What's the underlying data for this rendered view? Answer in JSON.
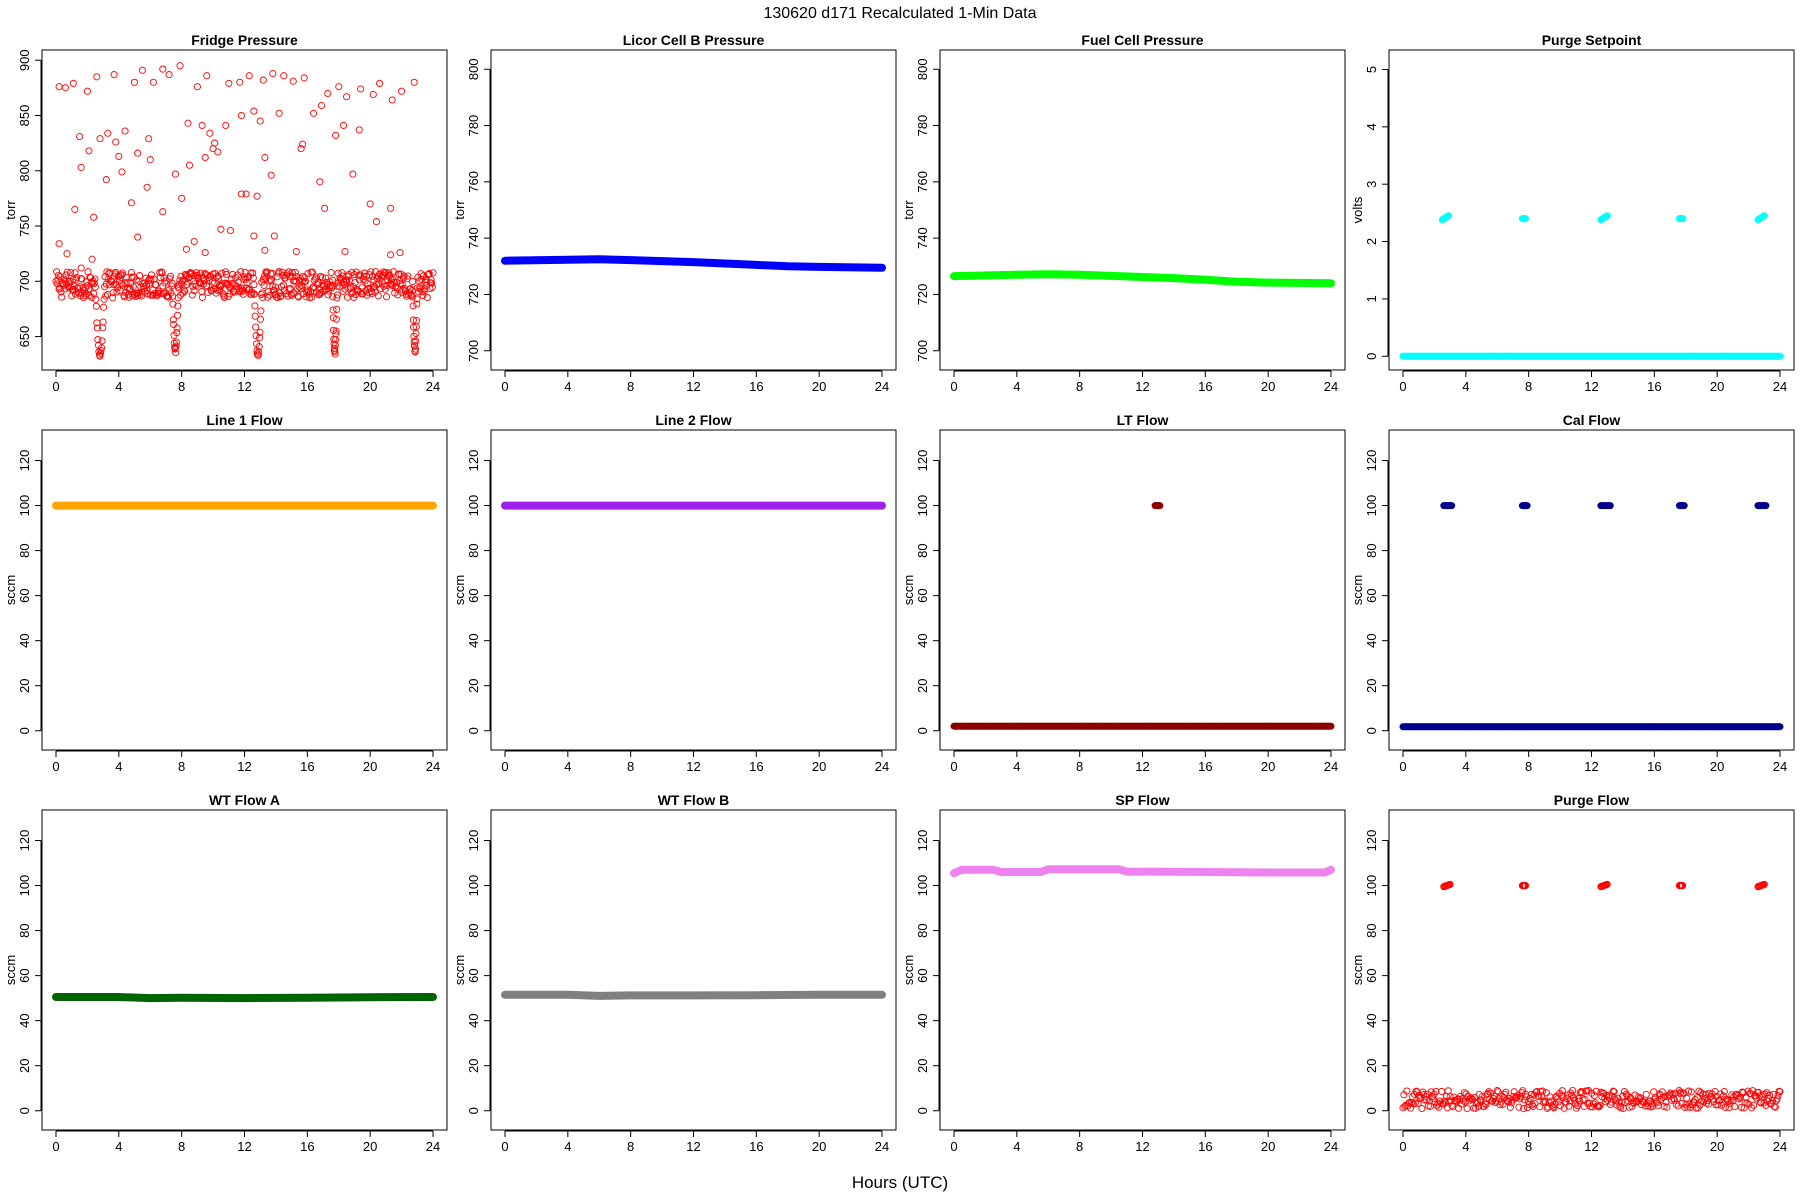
{
  "figure": {
    "title": "130620   d171   Recalculated 1-Min Data",
    "xlabel": "Hours (UTC)"
  },
  "chart_data": [
    {
      "type": "scatter",
      "title": "Fridge Pressure",
      "ylabel": "torr",
      "color": "#ff0000",
      "marker": "open",
      "xlim": [
        0,
        24
      ],
      "xticks": [
        0,
        4,
        8,
        12,
        16,
        20,
        24
      ],
      "ylim": [
        627,
        902
      ],
      "yticks": [
        650,
        700,
        750,
        800,
        850,
        900
      ],
      "baseline": {
        "y": 697,
        "spread": 12,
        "x_start": 0,
        "x_end": 24,
        "step": 0.04
      },
      "dips": [
        {
          "x_start": 2.5,
          "x_end": 3.1,
          "y_min": 633
        },
        {
          "x_start": 7.4,
          "x_end": 7.8,
          "y_min": 637
        },
        {
          "x_start": 12.6,
          "x_end": 13.1,
          "y_min": 634
        },
        {
          "x_start": 17.6,
          "x_end": 17.9,
          "y_min": 636
        },
        {
          "x_start": 22.7,
          "x_end": 23.0,
          "y_min": 638
        }
      ],
      "outliers": [
        [
          0.2,
          876
        ],
        [
          0.6,
          875
        ],
        [
          1.1,
          879
        ],
        [
          2.0,
          872
        ],
        [
          2.6,
          885
        ],
        [
          3.7,
          887
        ],
        [
          5.0,
          880
        ],
        [
          5.5,
          891
        ],
        [
          6.2,
          880
        ],
        [
          6.8,
          892
        ],
        [
          7.2,
          887
        ],
        [
          7.9,
          895
        ],
        [
          9.0,
          876
        ],
        [
          9.6,
          886
        ],
        [
          11.0,
          879
        ],
        [
          11.7,
          880
        ],
        [
          12.3,
          886
        ],
        [
          13.2,
          882
        ],
        [
          13.8,
          888
        ],
        [
          14.5,
          886
        ],
        [
          15.1,
          881
        ],
        [
          15.8,
          884
        ],
        [
          17.3,
          870
        ],
        [
          18.0,
          876
        ],
        [
          18.5,
          867
        ],
        [
          19.4,
          874
        ],
        [
          20.2,
          869
        ],
        [
          20.6,
          879
        ],
        [
          21.4,
          864
        ],
        [
          22.0,
          872
        ],
        [
          22.8,
          880
        ],
        [
          1.5,
          831
        ],
        [
          2.8,
          829
        ],
        [
          3.3,
          834
        ],
        [
          3.8,
          826
        ],
        [
          4.4,
          836
        ],
        [
          4.0,
          813
        ],
        [
          5.2,
          816
        ],
        [
          5.9,
          829
        ],
        [
          6.0,
          810
        ],
        [
          8.4,
          843
        ],
        [
          9.3,
          841
        ],
        [
          9.8,
          834
        ],
        [
          10.1,
          825
        ],
        [
          10.8,
          841
        ],
        [
          11.8,
          850
        ],
        [
          12.6,
          854
        ],
        [
          13.0,
          845
        ],
        [
          14.2,
          852
        ],
        [
          15.7,
          824
        ],
        [
          16.4,
          852
        ],
        [
          16.9,
          859
        ],
        [
          17.8,
          832
        ],
        [
          18.3,
          841
        ],
        [
          19.3,
          837
        ],
        [
          2.1,
          818
        ],
        [
          3.2,
          792
        ],
        [
          9.5,
          812
        ],
        [
          10.0,
          820
        ],
        [
          13.3,
          812
        ],
        [
          1.6,
          803
        ],
        [
          4.2,
          799
        ],
        [
          5.8,
          785
        ],
        [
          7.6,
          797
        ],
        [
          8.5,
          805
        ],
        [
          10.3,
          817
        ],
        [
          11.8,
          779
        ],
        [
          12.8,
          777
        ],
        [
          13.7,
          796
        ],
        [
          15.6,
          820
        ],
        [
          16.8,
          790
        ],
        [
          18.9,
          797
        ],
        [
          1.2,
          765
        ],
        [
          2.4,
          758
        ],
        [
          4.8,
          771
        ],
        [
          6.8,
          763
        ],
        [
          8.0,
          775
        ],
        [
          12.1,
          779
        ],
        [
          17.1,
          766
        ],
        [
          20.0,
          770
        ],
        [
          20.4,
          754
        ],
        [
          21.3,
          766
        ],
        [
          0.2,
          734
        ],
        [
          0.7,
          725
        ],
        [
          1.6,
          712
        ],
        [
          2.3,
          720
        ],
        [
          5.2,
          740
        ],
        [
          8.3,
          729
        ],
        [
          8.8,
          736
        ],
        [
          9.5,
          726
        ],
        [
          10.5,
          747
        ],
        [
          11.1,
          746
        ],
        [
          12.6,
          741
        ],
        [
          13.3,
          728
        ],
        [
          13.9,
          741
        ],
        [
          15.3,
          727
        ],
        [
          18.4,
          727
        ],
        [
          21.3,
          724
        ],
        [
          21.9,
          726
        ]
      ]
    },
    {
      "type": "line",
      "title": "Licor Cell B Pressure",
      "ylabel": "torr",
      "color": "#0000ff",
      "xlim": [
        0,
        24
      ],
      "xticks": [
        0,
        4,
        8,
        12,
        16,
        20,
        24
      ],
      "ylim": [
        696,
        804
      ],
      "yticks": [
        700,
        720,
        740,
        760,
        780,
        800
      ],
      "x": [
        0,
        4,
        6,
        8,
        12,
        14,
        16,
        18,
        20,
        24
      ],
      "y": [
        732,
        732.3,
        732.5,
        732.2,
        731.5,
        731,
        730.5,
        730,
        729.8,
        729.5
      ]
    },
    {
      "type": "line",
      "title": "Fuel Cell Pressure",
      "ylabel": "torr",
      "color": "#00ff00",
      "xlim": [
        0,
        24
      ],
      "xticks": [
        0,
        4,
        8,
        12,
        16,
        20,
        24
      ],
      "ylim": [
        696,
        804
      ],
      "yticks": [
        700,
        720,
        740,
        760,
        780,
        800
      ],
      "x": [
        0,
        4,
        6,
        8,
        12,
        14,
        16,
        18,
        20,
        24
      ],
      "y": [
        726.5,
        727,
        727.2,
        727,
        726.2,
        725.8,
        725.2,
        724.5,
        724.2,
        724
      ]
    },
    {
      "type": "scatter",
      "title": "Purge Setpoint",
      "ylabel": "volts",
      "color": "#00ffff",
      "marker": "filled",
      "xlim": [
        0,
        24
      ],
      "xticks": [
        0,
        4,
        8,
        12,
        16,
        20,
        24
      ],
      "ylim": [
        -0.1,
        5.2
      ],
      "yticks": [
        0,
        1,
        2,
        3,
        4,
        5
      ],
      "baseline": {
        "y": 0,
        "spread": 0,
        "x_start": 0,
        "x_end": 24,
        "step": 0.05
      },
      "clusters": [
        {
          "x_start": 2.5,
          "x_end": 2.9,
          "y_start": 2.38,
          "y_end": 2.45
        },
        {
          "x_start": 7.6,
          "x_end": 7.8,
          "y_start": 2.4,
          "y_end": 2.4
        },
        {
          "x_start": 12.6,
          "x_end": 13.0,
          "y_start": 2.38,
          "y_end": 2.45
        },
        {
          "x_start": 17.6,
          "x_end": 17.8,
          "y_start": 2.4,
          "y_end": 2.4
        },
        {
          "x_start": 22.6,
          "x_end": 23.0,
          "y_start": 2.38,
          "y_end": 2.45
        }
      ]
    },
    {
      "type": "line",
      "title": "Line 1 Flow",
      "ylabel": "sccm",
      "color": "#ffa500",
      "xlim": [
        0,
        24
      ],
      "xticks": [
        0,
        4,
        8,
        12,
        16,
        20,
        24
      ],
      "ylim": [
        -5,
        130
      ],
      "yticks": [
        0,
        20,
        40,
        60,
        80,
        100,
        120
      ],
      "x": [
        0,
        24
      ],
      "y": [
        100,
        100
      ]
    },
    {
      "type": "line",
      "title": "Line 2 Flow",
      "ylabel": "sccm",
      "color": "#a020f0",
      "xlim": [
        0,
        24
      ],
      "xticks": [
        0,
        4,
        8,
        12,
        16,
        20,
        24
      ],
      "ylim": [
        -5,
        130
      ],
      "yticks": [
        0,
        20,
        40,
        60,
        80,
        100,
        120
      ],
      "x": [
        0,
        24
      ],
      "y": [
        100,
        100
      ]
    },
    {
      "type": "scatter",
      "title": "LT Flow",
      "ylabel": "sccm",
      "color": "#8b0000",
      "marker": "filled",
      "xlim": [
        0,
        24
      ],
      "xticks": [
        0,
        4,
        8,
        12,
        16,
        20,
        24
      ],
      "ylim": [
        -5,
        130
      ],
      "yticks": [
        0,
        20,
        40,
        60,
        80,
        100,
        120
      ],
      "baseline": {
        "y": 2,
        "spread": 0,
        "x_start": 0,
        "x_end": 24,
        "step": 0.05
      },
      "clusters": [
        {
          "x_start": 12.8,
          "x_end": 13.1,
          "y_start": 100,
          "y_end": 100
        }
      ]
    },
    {
      "type": "scatter",
      "title": "Cal Flow",
      "ylabel": "sccm",
      "color": "#00008b",
      "marker": "filled",
      "xlim": [
        0,
        24
      ],
      "xticks": [
        0,
        4,
        8,
        12,
        16,
        20,
        24
      ],
      "ylim": [
        -5,
        130
      ],
      "yticks": [
        0,
        20,
        40,
        60,
        80,
        100,
        120
      ],
      "baseline": {
        "y": 1.8,
        "spread": 0,
        "x_start": 0,
        "x_end": 24,
        "step": 0.05
      },
      "clusters": [
        {
          "x_start": 2.6,
          "x_end": 3.1,
          "y_start": 100,
          "y_end": 100
        },
        {
          "x_start": 7.6,
          "x_end": 7.9,
          "y_start": 100,
          "y_end": 100
        },
        {
          "x_start": 12.6,
          "x_end": 13.2,
          "y_start": 100,
          "y_end": 100
        },
        {
          "x_start": 17.6,
          "x_end": 17.9,
          "y_start": 100,
          "y_end": 100
        },
        {
          "x_start": 22.6,
          "x_end": 23.1,
          "y_start": 100,
          "y_end": 100
        }
      ]
    },
    {
      "type": "line",
      "title": "WT Flow A",
      "ylabel": "sccm",
      "color": "#006400",
      "xlim": [
        0,
        24
      ],
      "xticks": [
        0,
        4,
        8,
        12,
        16,
        20,
        24
      ],
      "ylim": [
        -5,
        130
      ],
      "yticks": [
        0,
        20,
        40,
        60,
        80,
        100,
        120
      ],
      "x": [
        0,
        4,
        6,
        8,
        12,
        16,
        20,
        24
      ],
      "y": [
        50.5,
        50.5,
        50,
        50.2,
        50,
        50.2,
        50.4,
        50.5
      ]
    },
    {
      "type": "line",
      "title": "WT Flow B",
      "ylabel": "sccm",
      "color": "#808080",
      "xlim": [
        0,
        24
      ],
      "xticks": [
        0,
        4,
        8,
        12,
        16,
        20,
        24
      ],
      "ylim": [
        -5,
        130
      ],
      "yticks": [
        0,
        20,
        40,
        60,
        80,
        100,
        120
      ],
      "x": [
        0,
        4,
        6,
        8,
        12,
        16,
        20,
        24
      ],
      "y": [
        51.5,
        51.5,
        51,
        51.2,
        51.2,
        51.3,
        51.5,
        51.5
      ]
    },
    {
      "type": "line",
      "title": "SP Flow",
      "ylabel": "sccm",
      "color": "#ee82ee",
      "xlim": [
        0,
        24
      ],
      "xticks": [
        0,
        4,
        8,
        12,
        16,
        20,
        24
      ],
      "ylim": [
        -5,
        130
      ],
      "yticks": [
        0,
        20,
        40,
        60,
        80,
        100,
        120
      ],
      "x": [
        0,
        0.5,
        2.5,
        3,
        5.5,
        6,
        10.5,
        11,
        16,
        20,
        23.6,
        24
      ],
      "y": [
        105.5,
        107,
        107,
        106,
        106,
        107.2,
        107.2,
        106.2,
        106,
        105.8,
        105.8,
        107
      ]
    },
    {
      "type": "scatter",
      "title": "Purge Flow",
      "ylabel": "sccm",
      "color": "#ff0000",
      "marker": "open",
      "xlim": [
        0,
        24
      ],
      "xticks": [
        0,
        4,
        8,
        12,
        16,
        20,
        24
      ],
      "ylim": [
        -5,
        130
      ],
      "yticks": [
        0,
        20,
        40,
        60,
        80,
        100,
        120
      ],
      "baseline": {
        "y": 5,
        "spread": 4,
        "x_start": 0,
        "x_end": 24,
        "step": 0.06
      },
      "clusters": [
        {
          "x_start": 2.6,
          "x_end": 3.0,
          "y_start": 99.5,
          "y_end": 100.5
        },
        {
          "x_start": 7.6,
          "x_end": 7.8,
          "y_start": 100,
          "y_end": 100
        },
        {
          "x_start": 12.6,
          "x_end": 13.0,
          "y_start": 99.5,
          "y_end": 100.5
        },
        {
          "x_start": 17.6,
          "x_end": 17.8,
          "y_start": 100,
          "y_end": 100
        },
        {
          "x_start": 22.6,
          "x_end": 23.0,
          "y_start": 99.5,
          "y_end": 100.5
        }
      ]
    }
  ]
}
